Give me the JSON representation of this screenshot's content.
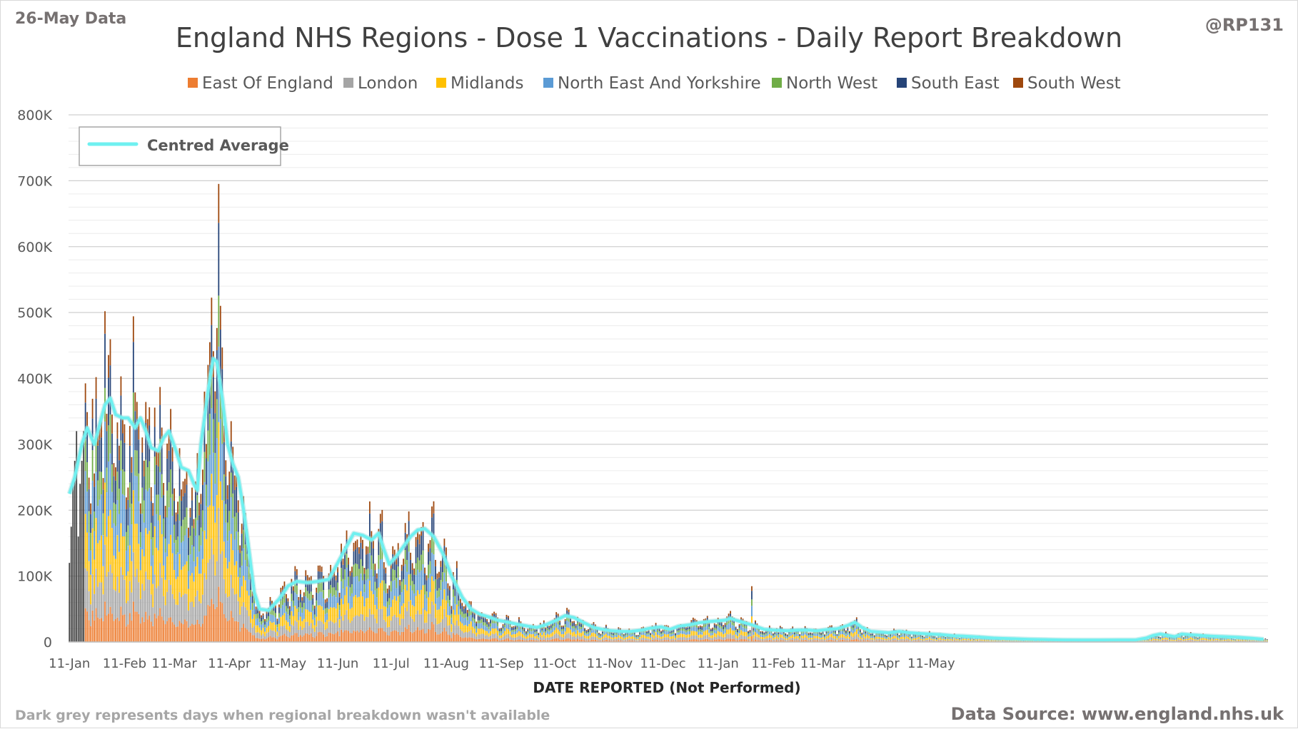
{
  "header": {
    "date_tag": "26-May Data",
    "handle": "@RP131",
    "title": "England NHS Regions - Dose 1 Vaccinations - Daily Report Breakdown"
  },
  "footer": {
    "note": "Dark grey represents days when regional breakdown wasn't available",
    "source": "Data Source: www.england.nhs.uk"
  },
  "colors": {
    "east_of_england": "#ED7D31",
    "london": "#A5A5A5",
    "midlands": "#FFC000",
    "north_east_and_yorkshire": "#5B9BD5",
    "north_west": "#70AD47",
    "south_east": "#264478",
    "south_west": "#9E480E",
    "unavailable": "#404040",
    "average": "#6FF0F0"
  },
  "chart_data": {
    "type": "bar",
    "stacked": true,
    "title": "England NHS Regions - Dose 1 Vaccinations - Daily Report Breakdown",
    "xlabel": "DATE REPORTED (Not Performed)",
    "ylabel": "",
    "ylim": [
      0,
      800000
    ],
    "yticks": [
      0,
      100000,
      200000,
      300000,
      400000,
      500000,
      600000,
      700000,
      800000
    ],
    "ytick_labels": [
      "0",
      "100K",
      "200K",
      "300K",
      "400K",
      "500K",
      "600K",
      "700K",
      "800K"
    ],
    "xtick_labels": [
      "11-Jan",
      "11-Feb",
      "11-Mar",
      "11-Apr",
      "11-May",
      "11-Jun",
      "11-Jul",
      "11-Aug",
      "11-Sep",
      "11-Oct",
      "11-Nov",
      "11-Dec",
      "11-Jan",
      "11-Feb",
      "11-Mar",
      "11-Apr",
      "11-May"
    ],
    "grid": true,
    "legend_position": "top",
    "series": [
      {
        "name": "East Of England",
        "share": 0.12
      },
      {
        "name": "London",
        "share": 0.16
      },
      {
        "name": "Midlands",
        "share": 0.19
      },
      {
        "name": "North East And Yorkshire",
        "share": 0.18
      },
      {
        "name": "North West",
        "share": 0.12
      },
      {
        "name": "South East",
        "share": 0.15
      },
      {
        "name": "South West",
        "share": 0.08
      }
    ],
    "unavailable_series": "Dark grey",
    "average_series": {
      "name": "Centred Average",
      "values": [
        [
          0,
          225000
        ],
        [
          3,
          250000
        ],
        [
          7,
          300000
        ],
        [
          10,
          325000
        ],
        [
          14,
          300000
        ],
        [
          17,
          330000
        ],
        [
          20,
          360000
        ],
        [
          23,
          370000
        ],
        [
          26,
          345000
        ],
        [
          30,
          340000
        ],
        [
          33,
          340000
        ],
        [
          37,
          325000
        ],
        [
          40,
          340000
        ],
        [
          43,
          320000
        ],
        [
          46,
          295000
        ],
        [
          50,
          290000
        ],
        [
          53,
          310000
        ],
        [
          56,
          320000
        ],
        [
          60,
          290000
        ],
        [
          63,
          265000
        ],
        [
          67,
          260000
        ],
        [
          70,
          240000
        ],
        [
          72,
          230000
        ],
        [
          74,
          300000
        ],
        [
          77,
          360000
        ],
        [
          79,
          400000
        ],
        [
          81,
          430000
        ],
        [
          83,
          425000
        ],
        [
          86,
          370000
        ],
        [
          89,
          300000
        ],
        [
          92,
          270000
        ],
        [
          95,
          250000
        ],
        [
          98,
          200000
        ],
        [
          101,
          140000
        ],
        [
          104,
          75000
        ],
        [
          107,
          50000
        ],
        [
          112,
          48000
        ],
        [
          118,
          65000
        ],
        [
          123,
          85000
        ],
        [
          128,
          92000
        ],
        [
          134,
          90000
        ],
        [
          140,
          92000
        ],
        [
          146,
          95000
        ],
        [
          151,
          120000
        ],
        [
          156,
          145000
        ],
        [
          160,
          165000
        ],
        [
          165,
          162000
        ],
        [
          170,
          155000
        ],
        [
          174,
          165000
        ],
        [
          177,
          140000
        ],
        [
          180,
          118000
        ],
        [
          184,
          130000
        ],
        [
          188,
          145000
        ],
        [
          192,
          160000
        ],
        [
          196,
          170000
        ],
        [
          200,
          172000
        ],
        [
          205,
          160000
        ],
        [
          210,
          135000
        ],
        [
          215,
          100000
        ],
        [
          221,
          68000
        ],
        [
          226,
          50000
        ],
        [
          231,
          42000
        ],
        [
          236,
          38000
        ],
        [
          241,
          33000
        ],
        [
          247,
          30000
        ],
        [
          252,
          27000
        ],
        [
          258,
          24000
        ],
        [
          263,
          22000
        ],
        [
          268,
          26000
        ],
        [
          274,
          33000
        ],
        [
          279,
          40000
        ],
        [
          284,
          37000
        ],
        [
          289,
          30000
        ],
        [
          295,
          22000
        ],
        [
          300,
          19000
        ],
        [
          305,
          17000
        ],
        [
          311,
          16000
        ],
        [
          316,
          16000
        ],
        [
          322,
          18000
        ],
        [
          327,
          21000
        ],
        [
          333,
          23000
        ],
        [
          338,
          19000
        ],
        [
          343,
          24000
        ],
        [
          349,
          26000
        ],
        [
          354,
          29000
        ],
        [
          360,
          31000
        ],
        [
          365,
          32000
        ],
        [
          369,
          33000
        ],
        [
          372,
          36000
        ],
        [
          375,
          33000
        ],
        [
          379,
          30000
        ],
        [
          384,
          26000
        ],
        [
          391,
          19000
        ],
        [
          397,
          18000
        ],
        [
          404,
          17000
        ],
        [
          410,
          18000
        ],
        [
          416,
          18000
        ],
        [
          421,
          17000
        ],
        [
          427,
          19000
        ],
        [
          432,
          20000
        ],
        [
          438,
          25000
        ],
        [
          442,
          30000
        ],
        [
          446,
          22000
        ],
        [
          451,
          16000
        ],
        [
          456,
          15000
        ],
        [
          461,
          14000
        ],
        [
          467,
          16000
        ],
        [
          473,
          14000
        ],
        [
          478,
          13000
        ],
        [
          484,
          12000
        ],
        [
          491,
          11000
        ],
        [
          497,
          9500
        ],
        [
          503,
          9000
        ],
        [
          512,
          7500
        ],
        [
          520,
          6000
        ],
        [
          530,
          5000
        ],
        [
          540,
          4000
        ],
        [
          550,
          3500
        ],
        [
          560,
          3000
        ],
        [
          570,
          2800
        ],
        [
          580,
          2800
        ],
        [
          590,
          3000
        ],
        [
          600,
          3000
        ],
        [
          606,
          6000
        ],
        [
          610,
          10000
        ],
        [
          614,
          12000
        ],
        [
          618,
          10000
        ],
        [
          622,
          8000
        ],
        [
          626,
          12000
        ],
        [
          630,
          11000
        ],
        [
          636,
          10000
        ],
        [
          642,
          9000
        ],
        [
          650,
          8000
        ],
        [
          658,
          7000
        ],
        [
          666,
          5500
        ],
        [
          672,
          4000
        ]
      ]
    }
  }
}
